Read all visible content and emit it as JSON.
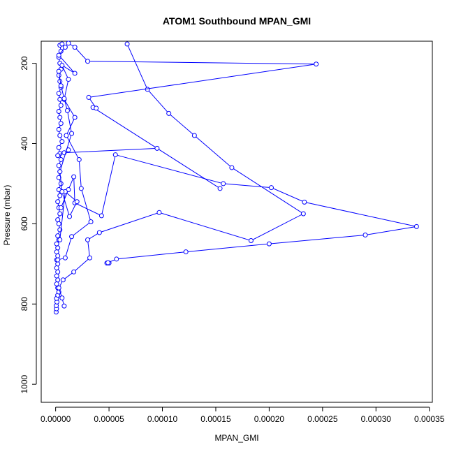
{
  "chart_data": {
    "type": "line",
    "title": "ATOM1 Southbound MPAN_GMI",
    "xlabel": "MPAN_GMI",
    "ylabel": "Pressure (mbar)",
    "x_ticks": [
      "0.00000",
      "0.00005",
      "0.00010",
      "0.00015",
      "0.00020",
      "0.00025",
      "0.00030",
      "0.00035"
    ],
    "y_ticks": [
      "200",
      "400",
      "600",
      "800",
      "1000"
    ],
    "xlim": [
      -1.35e-05,
      0.0003528
    ],
    "ylim": [
      1045,
      145
    ],
    "marker": "open-circle",
    "color": "#0000ff",
    "series": [
      {
        "points": [
          [
            5e-07,
            820
          ],
          [
            8e-07,
            812
          ],
          [
            6e-07,
            804
          ],
          [
            1.2e-06,
            795
          ],
          [
            9e-07,
            786
          ],
          [
            2e-06,
            778
          ],
          [
            3e-06,
            770
          ],
          [
            2e-06,
            760
          ],
          [
            1e-06,
            750
          ],
          [
            2e-06,
            740
          ],
          [
            1e-06,
            730
          ],
          [
            2e-06,
            720
          ],
          [
            1e-06,
            710
          ],
          [
            2e-06,
            700
          ],
          [
            1e-06,
            690
          ],
          [
            2e-06,
            680
          ],
          [
            1e-06,
            670
          ],
          [
            2e-06,
            660
          ],
          [
            1e-06,
            650
          ],
          [
            3e-06,
            640
          ],
          [
            2e-06,
            630
          ],
          [
            4e-06,
            615
          ],
          [
            3e-06,
            600
          ],
          [
            2e-06,
            590
          ],
          [
            4e-06,
            575
          ],
          [
            3e-06,
            560
          ],
          [
            2e-06,
            545
          ],
          [
            4e-06,
            530
          ],
          [
            3e-06,
            515
          ],
          [
            5e-06,
            500
          ],
          [
            3e-06,
            485
          ],
          [
            4e-06,
            470
          ],
          [
            3e-06,
            455
          ],
          [
            5e-06,
            440
          ],
          [
            4e-06,
            425
          ],
          [
            3e-06,
            410
          ],
          [
            6e-06,
            395
          ],
          [
            4e-06,
            380
          ],
          [
            3e-06,
            365
          ],
          [
            5e-06,
            350
          ],
          [
            4e-06,
            335
          ],
          [
            3e-06,
            320
          ],
          [
            5e-06,
            305
          ],
          [
            4e-06,
            290
          ],
          [
            3e-06,
            275
          ],
          [
            5e-06,
            260
          ],
          [
            4e-06,
            245
          ],
          [
            3e-06,
            230
          ],
          [
            5e-06,
            215
          ],
          [
            4e-06,
            200
          ],
          [
            3e-06,
            185
          ],
          [
            5e-06,
            170
          ],
          [
            4e-06,
            155
          ]
        ]
      },
      {
        "points": [
          [
            8e-06,
            805
          ],
          [
            6e-06,
            785
          ],
          [
            3e-06,
            760
          ],
          [
            7e-06,
            740
          ],
          [
            1.7e-05,
            720
          ],
          [
            3.2e-05,
            685
          ],
          [
            3e-05,
            640
          ],
          [
            4.1e-05,
            622
          ],
          [
            9.7e-05,
            572
          ],
          [
            0.000183,
            642
          ],
          [
            0.000232,
            575
          ],
          [
            0.000165,
            460
          ],
          [
            0.00013,
            380
          ],
          [
            0.000106,
            325
          ],
          [
            8.6e-05,
            265
          ],
          [
            6.7e-05,
            152
          ]
        ]
      },
      {
        "points": [
          [
            5e-06,
            560
          ],
          [
            1.2e-05,
            515
          ],
          [
            1.7e-05,
            483
          ],
          [
            1.8e-05,
            548
          ],
          [
            4.3e-05,
            580
          ],
          [
            5.6e-05,
            428
          ],
          [
            0.000157,
            500
          ],
          [
            0.000202,
            510
          ],
          [
            0.000233,
            546
          ],
          [
            0.000338,
            607
          ],
          [
            0.00029,
            628
          ],
          [
            0.0002,
            650
          ],
          [
            0.000122,
            670
          ],
          [
            5.7e-05,
            688
          ],
          [
            4.8e-05,
            698
          ],
          [
            5e-05,
            698
          ],
          [
            4.9e-05,
            697
          ]
        ]
      },
      {
        "points": [
          [
            2e-06,
            430
          ],
          [
            1.2e-05,
            416
          ],
          [
            8e-06,
            423
          ],
          [
            9.5e-05,
            412
          ],
          [
            0.000154,
            512
          ],
          [
            3.5e-05,
            310
          ],
          [
            3.8e-05,
            312
          ],
          [
            3.1e-05,
            285
          ],
          [
            0.000244,
            202
          ],
          [
            3e-05,
            195
          ],
          [
            1.8e-05,
            160
          ],
          [
            1.2e-05,
            150
          ]
        ]
      },
      {
        "points": [
          [
            2e-06,
            690
          ],
          [
            9e-06,
            685
          ],
          [
            1.5e-05,
            632
          ],
          [
            3.3e-05,
            595
          ],
          [
            2.4e-05,
            512
          ],
          [
            2.2e-05,
            440
          ],
          [
            1e-05,
            380
          ],
          [
            1.8e-05,
            335
          ],
          [
            8e-06,
            290
          ],
          [
            1.2e-05,
            240
          ],
          [
            6e-06,
            205
          ],
          [
            1.8e-05,
            225
          ],
          [
            3e-06,
            180
          ],
          [
            9e-06,
            160
          ],
          [
            6e-06,
            152
          ]
        ]
      },
      {
        "points": [
          [
            4e-06,
            640
          ],
          [
            9e-06,
            520
          ],
          [
            2e-05,
            545
          ],
          [
            1.3e-05,
            582
          ],
          [
            6e-06,
            520
          ],
          [
            4e-06,
            470
          ],
          [
            1.5e-05,
            375
          ],
          [
            1.1e-05,
            318
          ],
          [
            8e-06,
            288
          ],
          [
            5e-06,
            256
          ],
          [
            3e-06,
            220
          ]
        ]
      }
    ]
  }
}
